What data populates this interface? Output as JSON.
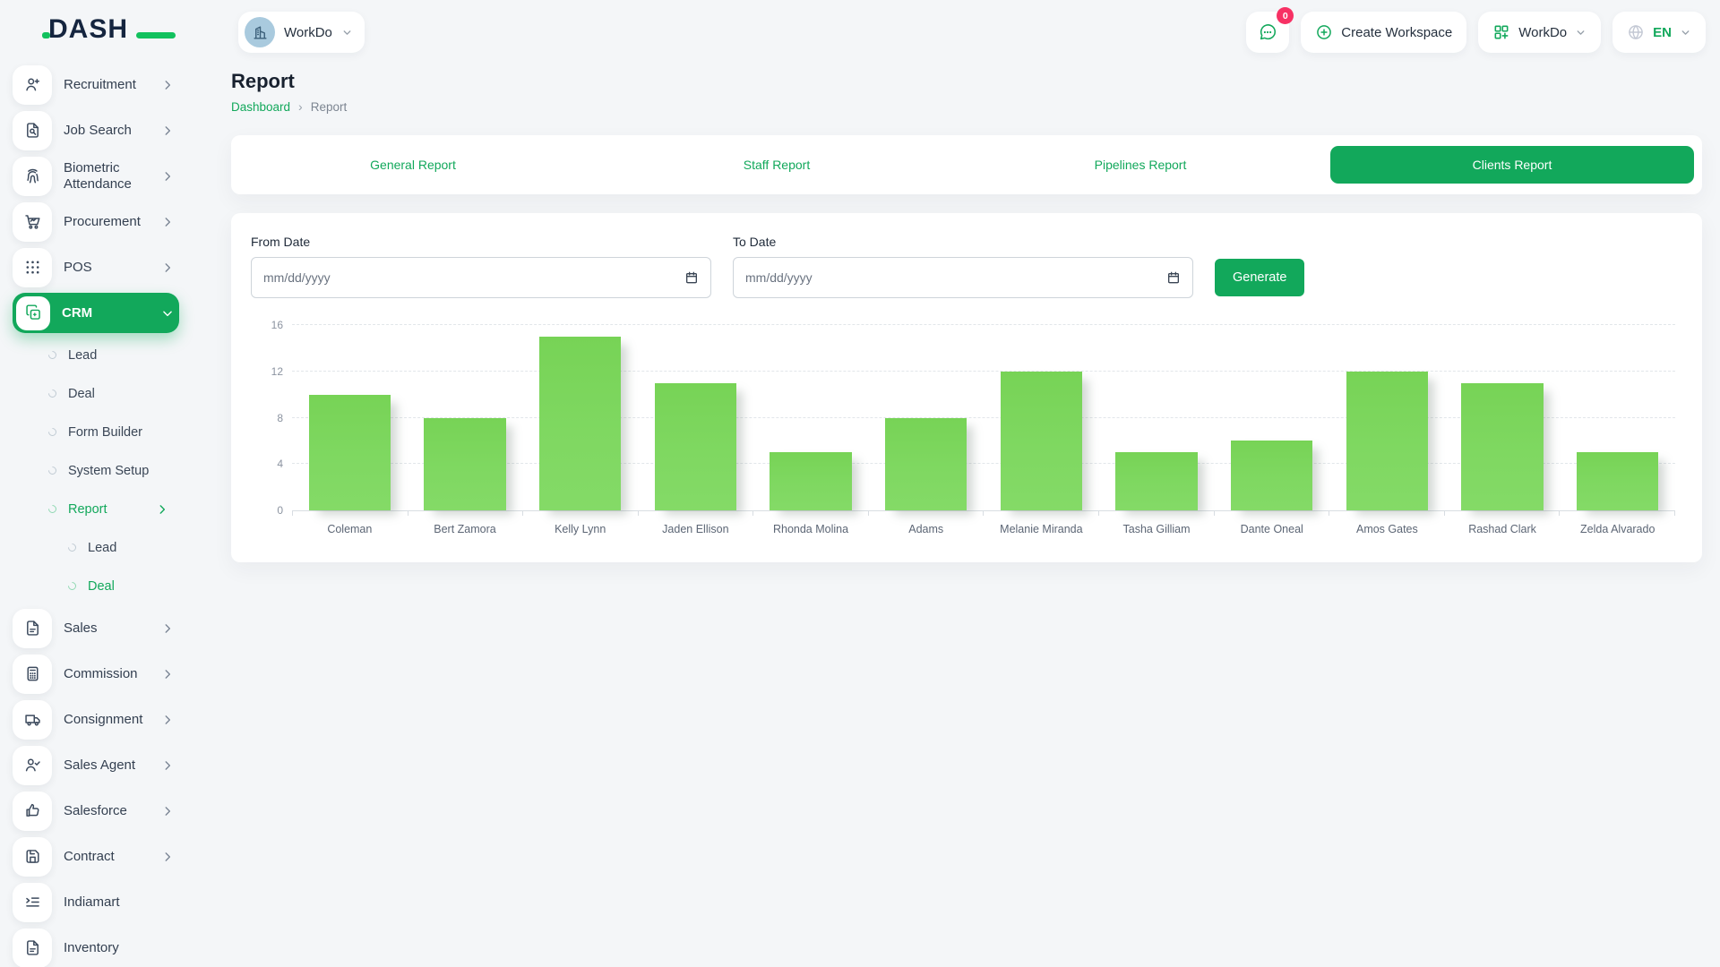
{
  "header": {
    "logo_text": "DASH",
    "workspace_chip_label": "WorkDo",
    "messages_badge": "0",
    "create_workspace_label": "Create Workspace",
    "workspace_menu_label": "WorkDo",
    "language_label": "EN"
  },
  "sidebar": {
    "items": [
      {
        "label": "Recruitment",
        "icon": "user-plus-icon",
        "chevron": true
      },
      {
        "label": "Job Search",
        "icon": "file-search-icon",
        "chevron": true
      },
      {
        "label": "Biometric Attendance",
        "icon": "fingerprint-icon",
        "chevron": true
      },
      {
        "label": "Procurement",
        "icon": "cart-icon",
        "chevron": true
      },
      {
        "label": "POS",
        "icon": "grid-dots-icon",
        "chevron": true
      },
      {
        "label": "CRM",
        "icon": "copy-icon",
        "chevron": true,
        "active": true,
        "children": [
          {
            "label": "Lead"
          },
          {
            "label": "Deal"
          },
          {
            "label": "Form Builder"
          },
          {
            "label": "System Setup"
          },
          {
            "label": "Report",
            "active": true,
            "chevron": true,
            "children": [
              {
                "label": "Lead"
              },
              {
                "label": "Deal",
                "active": true
              }
            ]
          }
        ]
      },
      {
        "label": "Sales",
        "icon": "file-icon",
        "chevron": true
      },
      {
        "label": "Commission",
        "icon": "calculator-icon",
        "chevron": true
      },
      {
        "label": "Consignment",
        "icon": "truck-icon",
        "chevron": true
      },
      {
        "label": "Sales Agent",
        "icon": "user-check-icon",
        "chevron": true
      },
      {
        "label": "Salesforce",
        "icon": "thumbs-up-icon",
        "chevron": true
      },
      {
        "label": "Contract",
        "icon": "floppy-icon",
        "chevron": true
      },
      {
        "label": "Indiamart",
        "icon": "list-indent-icon",
        "chevron": false
      },
      {
        "label": "Inventory",
        "icon": "file-icon",
        "chevron": false
      }
    ]
  },
  "page": {
    "title": "Report",
    "breadcrumb": [
      "Dashboard",
      "Report"
    ]
  },
  "tabs": [
    {
      "label": "General Report",
      "active": false
    },
    {
      "label": "Staff Report",
      "active": false
    },
    {
      "label": "Pipelines Report",
      "active": false
    },
    {
      "label": "Clients Report",
      "active": true
    }
  ],
  "filter": {
    "from_label": "From Date",
    "to_label": "To Date",
    "date_placeholder": "mm/dd/yyyy",
    "generate_label": "Generate"
  },
  "chart_data": {
    "type": "bar",
    "title": "",
    "xlabel": "",
    "ylabel": "",
    "categories": [
      "Coleman",
      "Bert Zamora",
      "Kelly Lynn",
      "Jaden Ellison",
      "Rhonda Molina",
      "Adams",
      "Melanie Miranda",
      "Tasha Gilliam",
      "Dante Oneal",
      "Amos Gates",
      "Rashad Clark",
      "Zelda Alvarado"
    ],
    "values": [
      10,
      8,
      15,
      11,
      5,
      8,
      12,
      5,
      6,
      12,
      11,
      5
    ],
    "ylim": [
      0,
      16
    ],
    "yticks": [
      0,
      4,
      8,
      12,
      16
    ],
    "grid": "dashed-horizontal",
    "legend": "none",
    "bar_color": "#7cd65c"
  },
  "colors": {
    "primary_green": "#12a85b",
    "bar_green": "#7cd65c",
    "badge_pink": "#f73164",
    "logo_navy": "#15253f"
  }
}
